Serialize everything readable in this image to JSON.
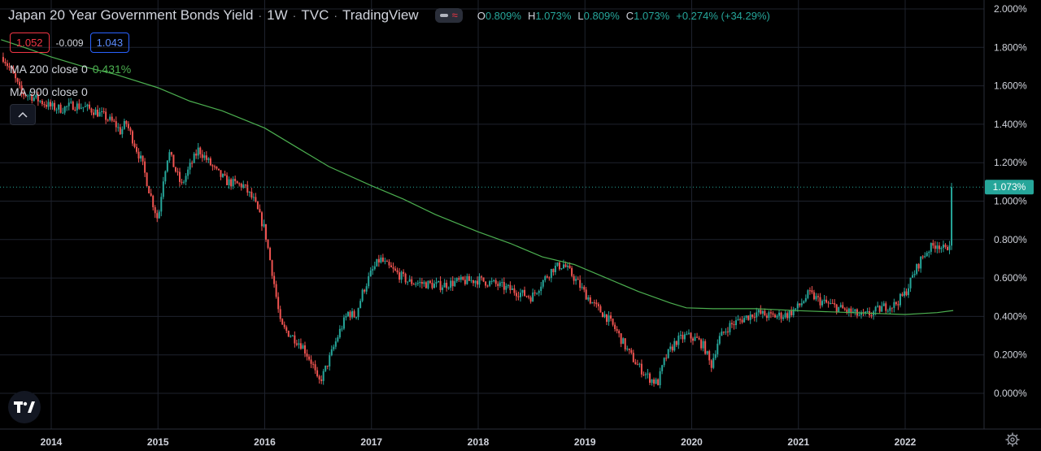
{
  "header": {
    "symbol": "Japan 20 Year Government Bonds Yield",
    "interval": "1W",
    "exchange": "TVC",
    "source": "TradingView",
    "ohlc": {
      "o_label": "O",
      "o_value": "0.809%",
      "h_label": "H",
      "h_value": "1.073%",
      "l_label": "L",
      "l_value": "0.809%",
      "c_label": "C",
      "c_value": "1.073%",
      "change": "+0.274% (+34.29%)"
    }
  },
  "prices": {
    "bid": "1.052",
    "spread": "-0.009",
    "ask": "1.043"
  },
  "indicators": {
    "ma200_label": "MA 200 close 0",
    "ma200_value": "0.431%",
    "ma900_label": "MA 900 close 0"
  },
  "icons": {
    "collapse": "chevron-up-icon",
    "logo": "tradingview-logo-icon",
    "settings": "gear-icon",
    "toggle": "wave-icon"
  },
  "colors": {
    "up": "#26a69a",
    "down": "#ef5350",
    "ma": "#4caf50",
    "last_price_bg": "#26a69a",
    "background": "#000000",
    "grid": "#1e222d"
  },
  "chart_data": {
    "type": "candlestick",
    "x_ticks": [
      "2014",
      "2015",
      "2016",
      "2017",
      "2018",
      "2019",
      "2020",
      "2021",
      "2022"
    ],
    "y_ticks": [
      "0.000%",
      "0.200%",
      "0.400%",
      "0.600%",
      "0.800%",
      "1.000%",
      "1.200%",
      "1.400%",
      "1.600%",
      "1.800%",
      "2.000%"
    ],
    "ylim": [
      0,
      2.0
    ],
    "xlim": [
      2013.53,
      2022.66
    ],
    "last_price_label": "1.073%",
    "last_price": 1.073,
    "grid": true,
    "price_series": {
      "name": "Japan 20 Year Government Bonds Yield",
      "points": [
        [
          2013.55,
          1.75
        ],
        [
          2013.65,
          1.65
        ],
        [
          2013.72,
          1.56
        ],
        [
          2013.8,
          1.55
        ],
        [
          2013.9,
          1.52
        ],
        [
          2014.0,
          1.49
        ],
        [
          2014.1,
          1.48
        ],
        [
          2014.2,
          1.5
        ],
        [
          2014.3,
          1.49
        ],
        [
          2014.4,
          1.47
        ],
        [
          2014.5,
          1.44
        ],
        [
          2014.6,
          1.4
        ],
        [
          2014.65,
          1.36
        ],
        [
          2014.7,
          1.41
        ],
        [
          2014.75,
          1.34
        ],
        [
          2014.85,
          1.2
        ],
        [
          2014.92,
          1.05
        ],
        [
          2015.0,
          0.9
        ],
        [
          2015.05,
          1.12
        ],
        [
          2015.1,
          1.26
        ],
        [
          2015.15,
          1.18
        ],
        [
          2015.22,
          1.08
        ],
        [
          2015.3,
          1.18
        ],
        [
          2015.38,
          1.27
        ],
        [
          2015.45,
          1.22
        ],
        [
          2015.55,
          1.15
        ],
        [
          2015.65,
          1.1
        ],
        [
          2015.8,
          1.08
        ],
        [
          2015.9,
          1.0
        ],
        [
          2016.0,
          0.85
        ],
        [
          2016.08,
          0.6
        ],
        [
          2016.15,
          0.35
        ],
        [
          2016.25,
          0.3
        ],
        [
          2016.35,
          0.25
        ],
        [
          2016.45,
          0.15
        ],
        [
          2016.5,
          0.05
        ],
        [
          2016.55,
          0.1
        ],
        [
          2016.62,
          0.2
        ],
        [
          2016.7,
          0.32
        ],
        [
          2016.78,
          0.42
        ],
        [
          2016.85,
          0.4
        ],
        [
          2016.92,
          0.53
        ],
        [
          2017.0,
          0.63
        ],
        [
          2017.08,
          0.7
        ],
        [
          2017.15,
          0.66
        ],
        [
          2017.25,
          0.62
        ],
        [
          2017.35,
          0.58
        ],
        [
          2017.5,
          0.57
        ],
        [
          2017.65,
          0.56
        ],
        [
          2017.8,
          0.58
        ],
        [
          2018.0,
          0.59
        ],
        [
          2018.15,
          0.57
        ],
        [
          2018.3,
          0.54
        ],
        [
          2018.4,
          0.52
        ],
        [
          2018.5,
          0.5
        ],
        [
          2018.6,
          0.58
        ],
        [
          2018.7,
          0.65
        ],
        [
          2018.8,
          0.67
        ],
        [
          2018.9,
          0.6
        ],
        [
          2019.0,
          0.52
        ],
        [
          2019.1,
          0.45
        ],
        [
          2019.2,
          0.4
        ],
        [
          2019.3,
          0.32
        ],
        [
          2019.4,
          0.22
        ],
        [
          2019.5,
          0.14
        ],
        [
          2019.6,
          0.08
        ],
        [
          2019.68,
          0.05
        ],
        [
          2019.75,
          0.18
        ],
        [
          2019.85,
          0.27
        ],
        [
          2019.95,
          0.3
        ],
        [
          2020.05,
          0.28
        ],
        [
          2020.12,
          0.24
        ],
        [
          2020.18,
          0.14
        ],
        [
          2020.25,
          0.28
        ],
        [
          2020.35,
          0.35
        ],
        [
          2020.45,
          0.38
        ],
        [
          2020.6,
          0.42
        ],
        [
          2020.75,
          0.4
        ],
        [
          2020.9,
          0.41
        ],
        [
          2021.0,
          0.45
        ],
        [
          2021.1,
          0.52
        ],
        [
          2021.2,
          0.48
        ],
        [
          2021.35,
          0.45
        ],
        [
          2021.5,
          0.42
        ],
        [
          2021.6,
          0.4
        ],
        [
          2021.7,
          0.42
        ],
        [
          2021.8,
          0.45
        ],
        [
          2021.9,
          0.46
        ],
        [
          2022.0,
          0.52
        ],
        [
          2022.08,
          0.62
        ],
        [
          2022.15,
          0.7
        ],
        [
          2022.22,
          0.75
        ],
        [
          2022.3,
          0.78
        ],
        [
          2022.38,
          0.74
        ],
        [
          2022.42,
          0.8
        ],
        [
          2022.45,
          1.07
        ]
      ]
    },
    "ma_series": {
      "name": "MA 200 close 0",
      "points": [
        [
          2013.53,
          1.84
        ],
        [
          2013.8,
          1.79
        ],
        [
          2014.0,
          1.75
        ],
        [
          2014.3,
          1.7
        ],
        [
          2014.6,
          1.66
        ],
        [
          2015.0,
          1.59
        ],
        [
          2015.3,
          1.52
        ],
        [
          2015.6,
          1.47
        ],
        [
          2016.0,
          1.38
        ],
        [
          2016.3,
          1.28
        ],
        [
          2016.6,
          1.18
        ],
        [
          2017.0,
          1.08
        ],
        [
          2017.3,
          1.01
        ],
        [
          2017.6,
          0.93
        ],
        [
          2018.0,
          0.84
        ],
        [
          2018.3,
          0.78
        ],
        [
          2018.6,
          0.71
        ],
        [
          2018.9,
          0.67
        ],
        [
          2019.2,
          0.6
        ],
        [
          2019.5,
          0.53
        ],
        [
          2019.8,
          0.47
        ],
        [
          2019.95,
          0.445
        ],
        [
          2020.2,
          0.44
        ],
        [
          2020.6,
          0.44
        ],
        [
          2021.0,
          0.43
        ],
        [
          2021.5,
          0.42
        ],
        [
          2022.0,
          0.41
        ],
        [
          2022.3,
          0.42
        ],
        [
          2022.45,
          0.431
        ]
      ]
    }
  }
}
